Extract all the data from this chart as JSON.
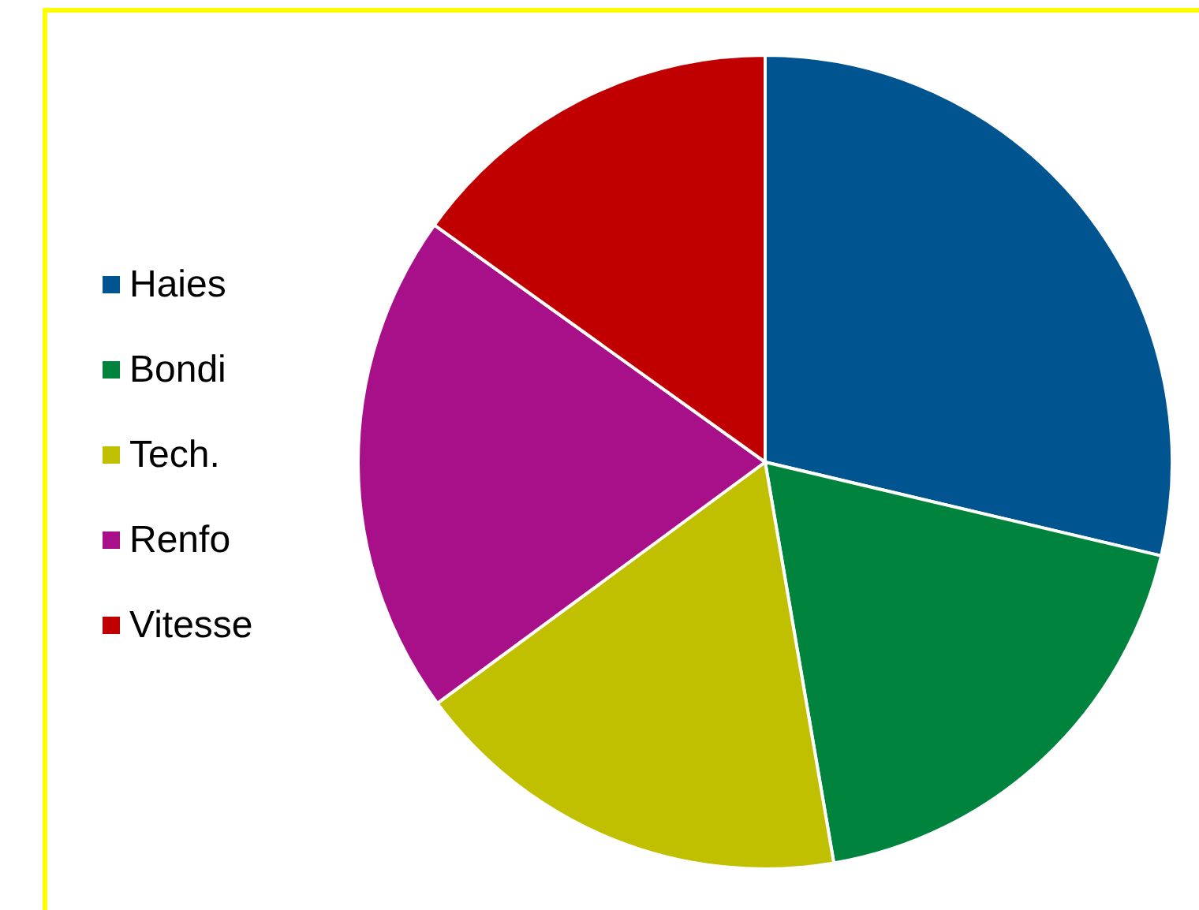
{
  "chart_data": {
    "type": "pie",
    "categories": [
      "Haies",
      "Bondi",
      "Tech.",
      "Renfo",
      "Vitesse"
    ],
    "values": [
      28.7,
      18.6,
      17.6,
      20.0,
      15.1
    ],
    "colors": [
      "#005591",
      "#00843d",
      "#c0bf00",
      "#a8108a",
      "#c00000"
    ],
    "legend": "left"
  }
}
